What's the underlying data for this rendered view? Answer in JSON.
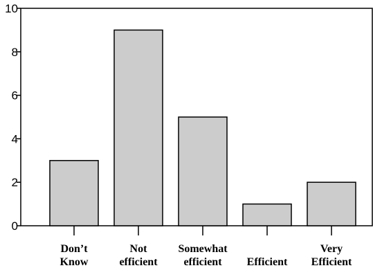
{
  "chart_data": {
    "type": "bar",
    "title": "",
    "xlabel": "",
    "ylabel": "",
    "categories": [
      [
        "Don’t",
        "Know"
      ],
      [
        "Not",
        "efficient"
      ],
      [
        "Somewhat",
        "efficient"
      ],
      [
        "Efficient"
      ],
      [
        "Very",
        "Efficient"
      ]
    ],
    "values": [
      3,
      9,
      5,
      1,
      2
    ],
    "ylim": [
      0,
      10
    ],
    "yticks": [
      "0",
      "2",
      "4",
      "6",
      "8",
      "10"
    ],
    "grid": false,
    "legend": "none",
    "bar_color": "#cccccc",
    "bar_edge_color": "#000000"
  }
}
